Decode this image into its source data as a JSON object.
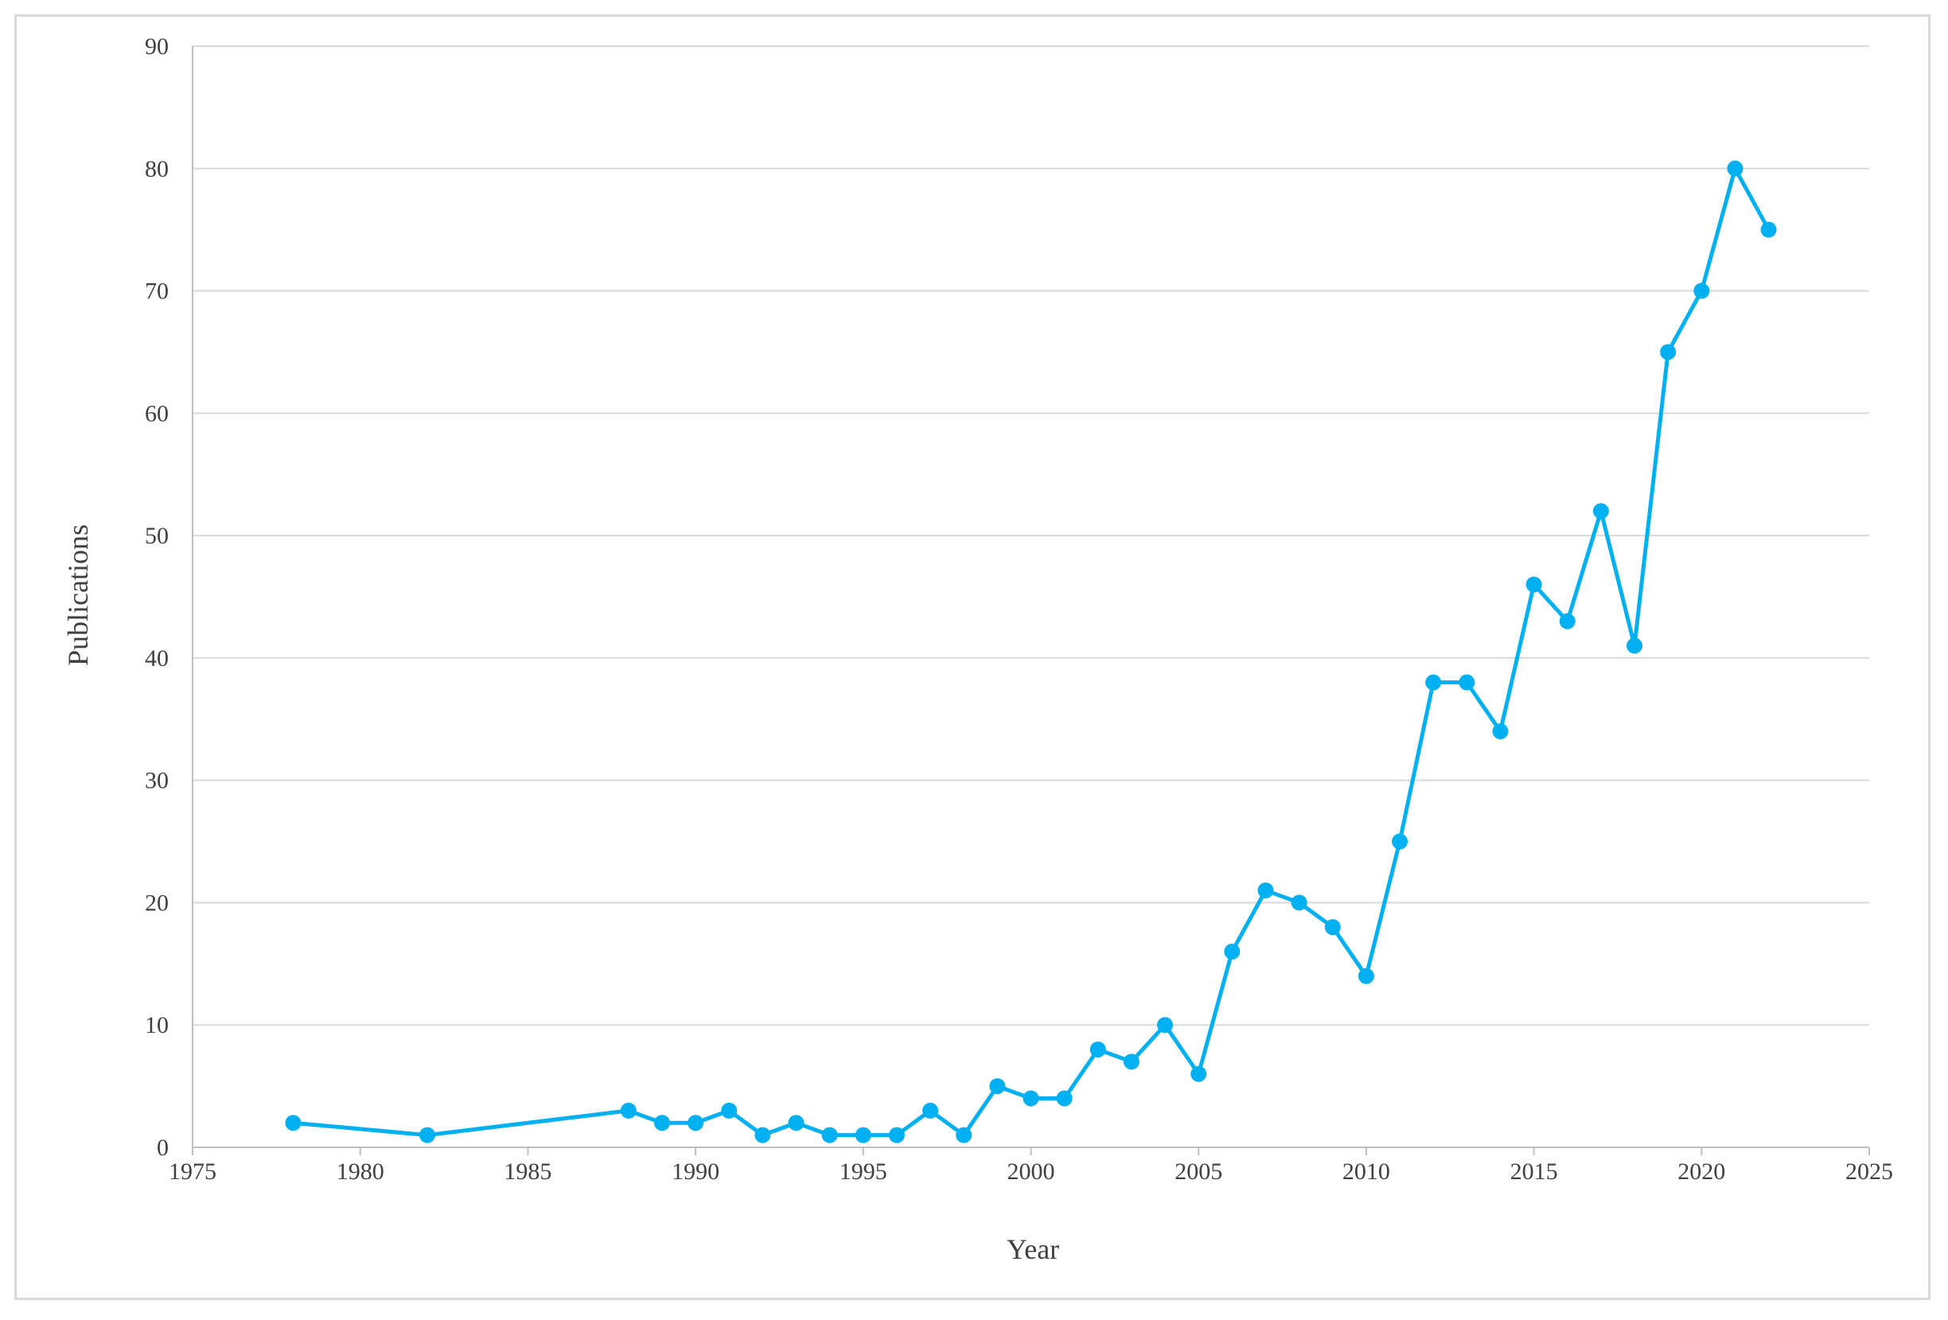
{
  "chart_data": {
    "type": "line",
    "xlabel": "Year",
    "ylabel": "Publications",
    "xlim": [
      1975,
      2025
    ],
    "ylim": [
      0,
      90
    ],
    "x_ticks": [
      "1975",
      "1980",
      "1985",
      "1990",
      "1995",
      "2000",
      "2005",
      "2010",
      "2015",
      "2020",
      "2025"
    ],
    "y_ticks": [
      "0",
      "10",
      "20",
      "30",
      "40",
      "50",
      "60",
      "70",
      "80",
      "90"
    ],
    "grid": "horizontal",
    "legend": "none",
    "series": [
      {
        "color": "#00b0f0",
        "x": [
          1978,
          1982,
          1988,
          1989,
          1990,
          1991,
          1992,
          1993,
          1994,
          1995,
          1996,
          1997,
          1998,
          1999,
          2000,
          2001,
          2002,
          2003,
          2004,
          2005,
          2006,
          2007,
          2008,
          2009,
          2010,
          2011,
          2012,
          2013,
          2014,
          2015,
          2016,
          2017,
          2018,
          2019,
          2020,
          2021,
          2022
        ],
        "y": [
          2,
          1,
          3,
          2,
          2,
          3,
          1,
          2,
          1,
          1,
          1,
          3,
          1,
          5,
          4,
          4,
          8,
          7,
          10,
          6,
          16,
          21,
          20,
          18,
          14,
          25,
          38,
          38,
          34,
          46,
          43,
          52,
          41,
          65,
          70,
          80,
          75
        ]
      }
    ]
  }
}
